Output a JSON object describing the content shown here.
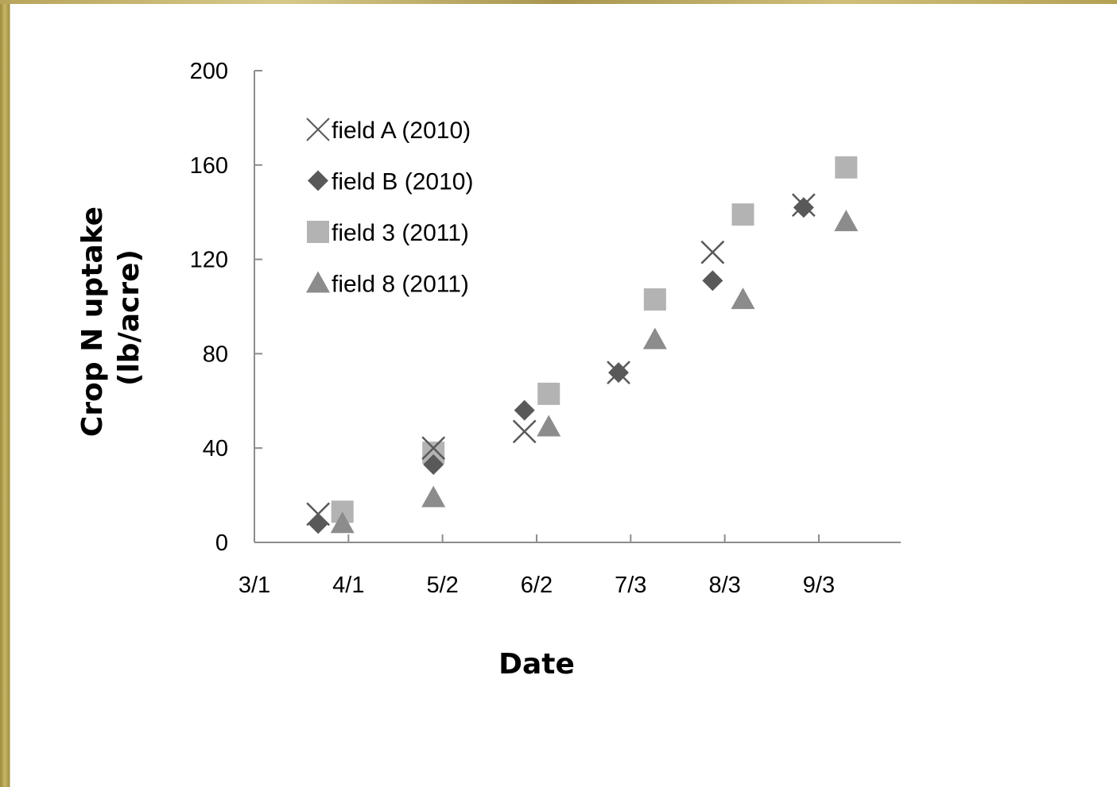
{
  "chart_data": {
    "type": "scatter",
    "title": "",
    "xlabel": "Date",
    "ylabel_lines": [
      "Crop N uptake",
      "(lb/acre)"
    ],
    "x_unit": "date",
    "xlim": [
      "3/1",
      "9/30"
    ],
    "ylim": [
      0,
      200
    ],
    "x_ticks": [
      {
        "label": "3/1",
        "date": "3/1"
      },
      {
        "label": "4/1",
        "date": "4/1"
      },
      {
        "label": "5/2",
        "date": "5/2"
      },
      {
        "label": "6/2",
        "date": "6/2"
      },
      {
        "label": "7/3",
        "date": "7/3"
      },
      {
        "label": "8/3",
        "date": "8/3"
      },
      {
        "label": "9/3",
        "date": "9/3"
      }
    ],
    "y_ticks": [
      0,
      40,
      80,
      120,
      160,
      200
    ],
    "grid": false,
    "legend_position": "top-left",
    "series": [
      {
        "name": "field A (2010)",
        "marker": "x",
        "color": "#595959",
        "points": [
          {
            "x": "3/22",
            "y": 12
          },
          {
            "x": "4/29",
            "y": 40
          },
          {
            "x": "5/29",
            "y": 47
          },
          {
            "x": "6/29",
            "y": 72
          },
          {
            "x": "7/30",
            "y": 123
          },
          {
            "x": "8/29",
            "y": 143
          }
        ]
      },
      {
        "name": "field B (2010)",
        "marker": "diamond",
        "color": "#595959",
        "points": [
          {
            "x": "3/22",
            "y": 8
          },
          {
            "x": "4/29",
            "y": 33
          },
          {
            "x": "5/29",
            "y": 56
          },
          {
            "x": "6/29",
            "y": 72
          },
          {
            "x": "7/30",
            "y": 111
          },
          {
            "x": "8/29",
            "y": 142
          }
        ]
      },
      {
        "name": "field 3 (2011)",
        "marker": "square",
        "color": "#b3b3b3",
        "points": [
          {
            "x": "3/30",
            "y": 13
          },
          {
            "x": "4/29",
            "y": 38
          },
          {
            "x": "6/6",
            "y": 63
          },
          {
            "x": "7/11",
            "y": 103
          },
          {
            "x": "8/9",
            "y": 139
          },
          {
            "x": "9/12",
            "y": 159
          }
        ]
      },
      {
        "name": "field 8 (2011)",
        "marker": "triangle",
        "color": "#8c8c8c",
        "points": [
          {
            "x": "3/30",
            "y": 8
          },
          {
            "x": "4/29",
            "y": 19
          },
          {
            "x": "6/6",
            "y": 49
          },
          {
            "x": "7/11",
            "y": 86
          },
          {
            "x": "8/9",
            "y": 103
          },
          {
            "x": "9/12",
            "y": 136
          }
        ]
      }
    ]
  }
}
